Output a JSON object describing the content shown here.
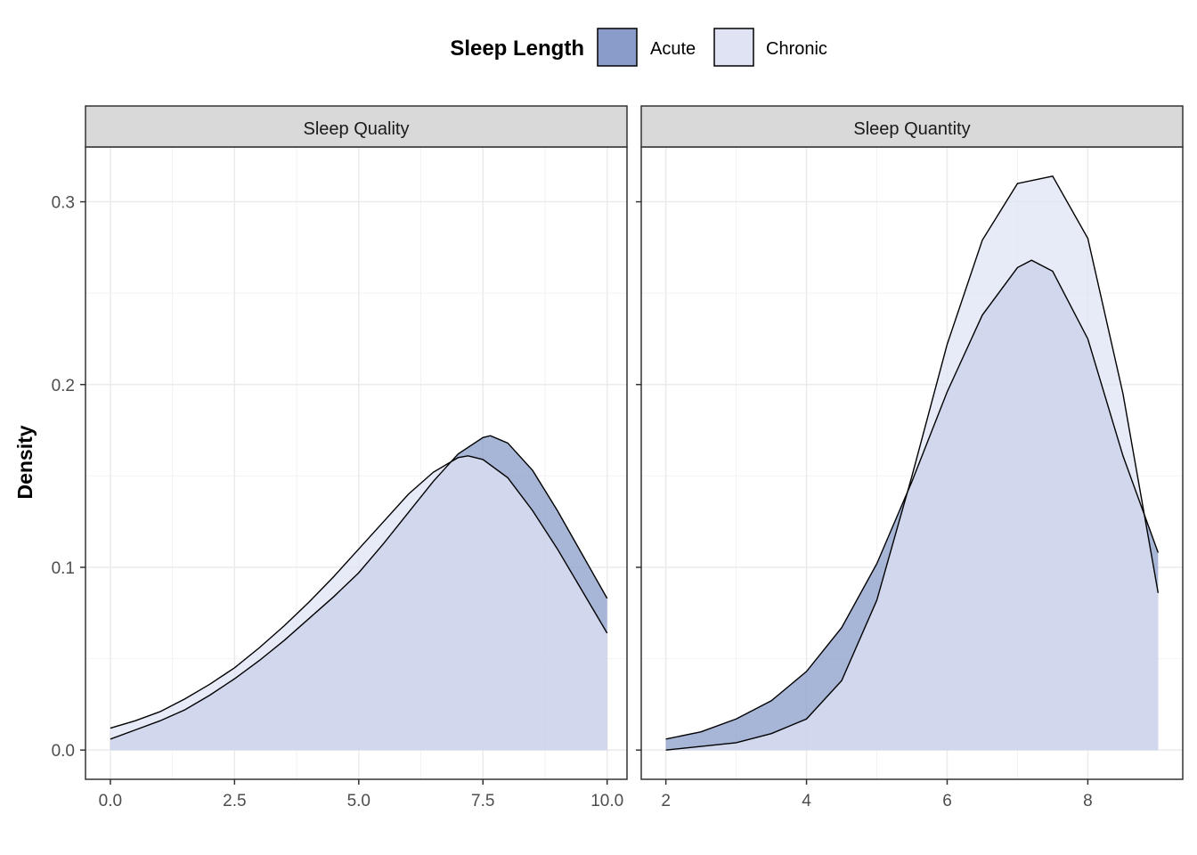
{
  "legend": {
    "title": "Sleep Length",
    "items": [
      {
        "label": "Acute",
        "color": "#8a9cc9"
      },
      {
        "label": "Chronic",
        "color": "#dfe3f4"
      }
    ]
  },
  "y_axis_title": "Density",
  "chart_data": [
    {
      "type": "area",
      "title": "Sleep Quality",
      "xlim": [
        -0.5,
        10.4
      ],
      "ylim": [
        -0.016,
        0.33
      ],
      "x_ticks": [
        0.0,
        2.5,
        5.0,
        7.5,
        10.0
      ],
      "x_tick_labels": [
        "0.0",
        "2.5",
        "5.0",
        "7.5",
        "10.0"
      ],
      "y_ticks": [
        0.0,
        0.1,
        0.2,
        0.3
      ],
      "y_tick_labels": [
        "0.0",
        "0.1",
        "0.2",
        "0.3"
      ],
      "grid": true,
      "series": [
        {
          "name": "Acute",
          "x": [
            0,
            0.5,
            1,
            1.5,
            2,
            2.5,
            3,
            3.5,
            4,
            4.5,
            5,
            5.5,
            6,
            6.5,
            7,
            7.5,
            7.65,
            8,
            8.5,
            9,
            9.5,
            10
          ],
          "values": [
            0.006,
            0.011,
            0.016,
            0.022,
            0.03,
            0.039,
            0.049,
            0.06,
            0.072,
            0.084,
            0.097,
            0.113,
            0.13,
            0.147,
            0.162,
            0.171,
            0.172,
            0.168,
            0.153,
            0.131,
            0.107,
            0.083
          ]
        },
        {
          "name": "Chronic",
          "x": [
            0,
            0.5,
            1,
            1.5,
            2,
            2.5,
            3,
            3.5,
            4,
            4.5,
            5,
            5.5,
            6,
            6.5,
            7,
            7.2,
            7.5,
            8,
            8.5,
            9,
            9.5,
            10
          ],
          "values": [
            0.012,
            0.016,
            0.021,
            0.028,
            0.036,
            0.045,
            0.056,
            0.068,
            0.081,
            0.095,
            0.11,
            0.125,
            0.14,
            0.152,
            0.16,
            0.161,
            0.159,
            0.149,
            0.131,
            0.11,
            0.087,
            0.064
          ]
        }
      ]
    },
    {
      "type": "area",
      "title": "Sleep Quantity",
      "xlim": [
        1.65,
        9.35
      ],
      "ylim": [
        -0.016,
        0.33
      ],
      "x_ticks": [
        2,
        4,
        6,
        8
      ],
      "x_tick_labels": [
        "2",
        "4",
        "6",
        "8"
      ],
      "y_ticks": [
        0.0,
        0.1,
        0.2,
        0.3
      ],
      "y_tick_labels": [
        "0.0",
        "0.1",
        "0.2",
        "0.3"
      ],
      "grid": true,
      "series": [
        {
          "name": "Acute",
          "x": [
            2,
            2.5,
            3,
            3.5,
            4,
            4.5,
            5,
            5.5,
            6,
            6.5,
            7,
            7.2,
            7.5,
            8,
            8.5,
            9
          ],
          "values": [
            0.006,
            0.01,
            0.017,
            0.027,
            0.043,
            0.067,
            0.102,
            0.147,
            0.196,
            0.238,
            0.264,
            0.268,
            0.262,
            0.225,
            0.161,
            0.108
          ]
        },
        {
          "name": "Chronic",
          "x": [
            2,
            2.5,
            3,
            3.5,
            4,
            4.5,
            5,
            5.5,
            6,
            6.5,
            7,
            7.5,
            8,
            8.5,
            9
          ],
          "values": [
            0.0,
            0.002,
            0.004,
            0.009,
            0.017,
            0.038,
            0.082,
            0.15,
            0.222,
            0.279,
            0.31,
            0.314,
            0.28,
            0.195,
            0.086
          ]
        }
      ]
    }
  ]
}
